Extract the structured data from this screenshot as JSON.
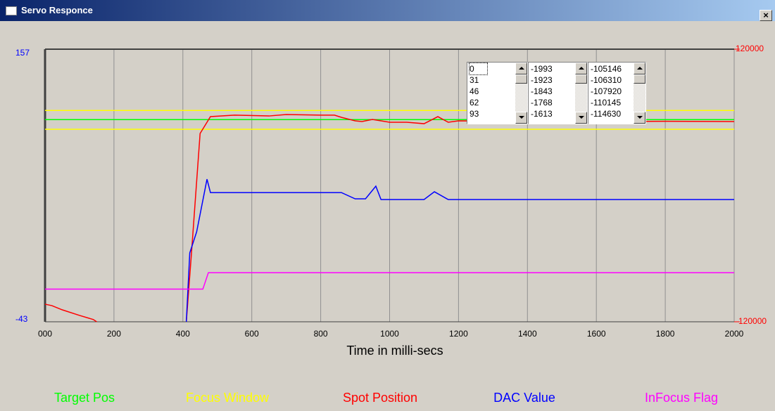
{
  "window": {
    "title": "Servo Responce"
  },
  "chart_data": {
    "type": "line",
    "xlabel": "Time in milli-secs",
    "xlim": [
      0,
      2000
    ],
    "xticks": [
      {
        "value": 0,
        "label": "000"
      },
      200,
      400,
      600,
      800,
      1000,
      1200,
      1400,
      1600,
      1800,
      2000
    ],
    "ylim": [
      -43,
      157
    ],
    "yticks": [
      -43,
      157
    ],
    "y2lim": [
      -120000,
      120000
    ],
    "y2ticks": [
      -120000,
      120000
    ],
    "grid": true,
    "legend": "bottom",
    "series": [
      {
        "name": "Target Pos",
        "color": "#00ff00",
        "axis": "y2",
        "x": [
          0,
          2000
        ],
        "values": [
          58000,
          58000
        ]
      },
      {
        "name": "Focus Window",
        "color": "#ffff00",
        "axis": "y2",
        "x": [
          0,
          2000
        ],
        "values": [
          66000,
          66000
        ],
        "lower": [
          49500,
          49500
        ]
      },
      {
        "name": "Spot Position",
        "color": "#ff0000",
        "axis": "y2",
        "x": [
          0,
          20,
          50,
          100,
          140,
          150,
          280,
          410,
          425,
          450,
          480,
          550,
          650,
          700,
          800,
          840,
          860,
          900,
          920,
          950,
          1000,
          1050,
          1100,
          1140,
          1170,
          1200,
          1400,
          1600,
          1800,
          2000
        ],
        "values": [
          -104500,
          -105800,
          -109500,
          -114400,
          -118000,
          -120000,
          null,
          -120000,
          -59400,
          45800,
          60600,
          61900,
          61200,
          62500,
          61900,
          61900,
          60000,
          56900,
          56300,
          58100,
          55700,
          55700,
          54400,
          60600,
          55700,
          56900,
          56500,
          56300,
          56500,
          56300
        ]
      },
      {
        "name": "DAC Value",
        "color": "#0000ff",
        "axis": "y",
        "x": [
          410,
          420,
          440,
          470,
          480,
          860,
          900,
          930,
          960,
          975,
          1100,
          1130,
          1170,
          2000
        ],
        "values": [
          -43,
          7.5,
          23,
          61.6,
          51.8,
          51.8,
          47.2,
          47.2,
          56.5,
          46.7,
          46.7,
          52.4,
          46.7,
          46.7
        ]
      },
      {
        "name": "InFocus Flag",
        "color": "#ff00ff",
        "axis": "y",
        "x": [
          0,
          458,
          474,
          2000
        ],
        "values": [
          -19,
          -19,
          -7,
          -7
        ]
      }
    ]
  },
  "listboxes": [
    {
      "items": [
        0,
        31,
        46,
        62,
        93
      ]
    },
    {
      "items": [
        -1993,
        -1923,
        -1843,
        -1768,
        -1613
      ]
    },
    {
      "items": [
        -105146,
        -106310,
        -107920,
        -110145,
        -114630
      ]
    }
  ]
}
